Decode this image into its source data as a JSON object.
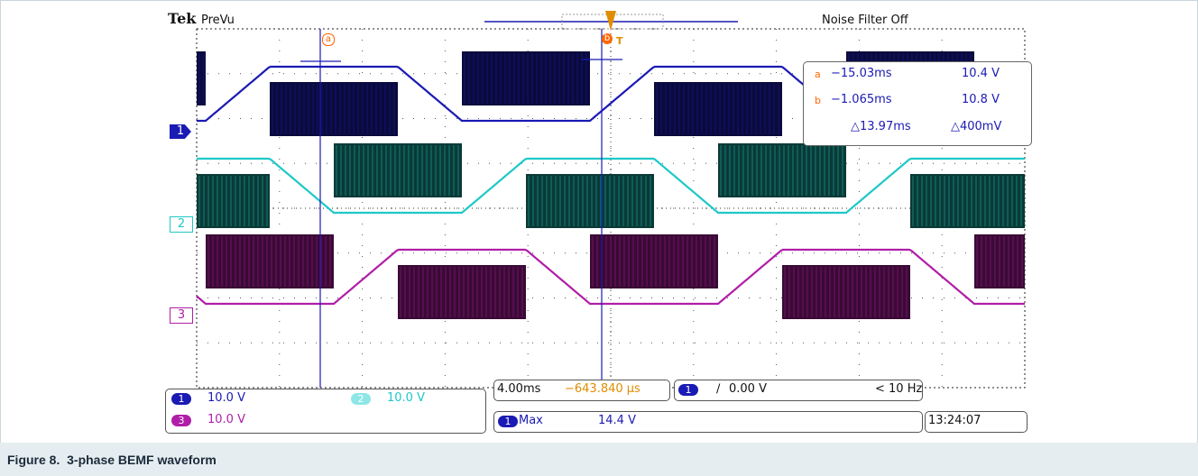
{
  "figure_caption": "Figure 8.  3-phase BEMF waveform",
  "scope": {
    "brand": "Tek",
    "mode": "PreVu",
    "noise_filter": "Noise Filter Off",
    "cursor_a_marker": "a",
    "cursor_b_marker": "b",
    "trigger_marker": "T",
    "channel_markers": [
      "1",
      "2",
      "3"
    ],
    "colors": {
      "ch1": "#1a1ab4",
      "ch2": "#1fc8c8",
      "ch3": "#b01ea8",
      "cursor": "#ff6600",
      "accent": "#e08c00"
    }
  },
  "cursor_readout": {
    "a_time": "−15.03ms",
    "a_value": "10.4 V",
    "b_time": "−1.065ms",
    "b_value": "10.8 V",
    "delta_time": "△13.97ms",
    "delta_value": "△400mV"
  },
  "channel_scales": [
    {
      "ch": "1",
      "scale": "10.0 V"
    },
    {
      "ch": "2",
      "scale": "10.0 V"
    },
    {
      "ch": "3",
      "scale": "10.0 V"
    }
  ],
  "timebase": {
    "scale": "4.00ms",
    "position": "−643.840 μs"
  },
  "trigger": {
    "ch": "1",
    "slope": "∕",
    "level": "0.00 V",
    "freq": "< 10 Hz"
  },
  "measurement": {
    "ch": "1",
    "label": "Max",
    "value": "14.4 V"
  },
  "clock": "13:24:07",
  "chart_data": {
    "type": "line",
    "title": "",
    "xlabel": "",
    "ylabel": "",
    "x_divisions": 10,
    "y_divisions": 8,
    "grid": true,
    "cursors_ms": {
      "a": -15.03,
      "b": -1.065
    },
    "series": [
      {
        "name": "1",
        "volts_per_div": 10.0,
        "shape": "trapezoidal BEMF with PWM chopping",
        "phase_deg": 0
      },
      {
        "name": "2",
        "volts_per_div": 10.0,
        "shape": "trapezoidal BEMF with PWM chopping",
        "phase_deg": 120
      },
      {
        "name": "3",
        "volts_per_div": 10.0,
        "shape": "trapezoidal BEMF with PWM chopping",
        "phase_deg": 240
      }
    ]
  }
}
